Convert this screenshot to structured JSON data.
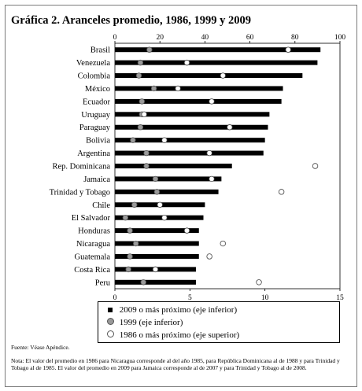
{
  "title": "Gráfica 2. Aranceles promedio, 1986, 1999 y 2009",
  "chart_data": {
    "type": "bar",
    "orientation": "horizontal",
    "categories": [
      "Brasil",
      "Venezuela",
      "Colombia",
      "México",
      "Ecuador",
      "Uruguay",
      "Paraguay",
      "Bolivia",
      "Argentina",
      "Rep. Dominicana",
      "Jamaica",
      "Trinidad y Tobago",
      "Chile",
      "El Salvador",
      "Honduras",
      "Nicaragua",
      "Guatemala",
      "Costa Rica",
      "Peru"
    ],
    "series": [
      {
        "name": "2009 o más próximo (eje inferior)",
        "marker": "bar",
        "axis": "bottom",
        "values": [
          13.7,
          13.5,
          12.5,
          11.2,
          11.1,
          10.3,
          10.2,
          10.0,
          9.9,
          7.8,
          7.1,
          6.9,
          6.0,
          5.9,
          5.6,
          5.6,
          5.6,
          5.4,
          5.4
        ]
      },
      {
        "name": "1999 (eje inferior)",
        "marker": "grey-circle",
        "axis": "bottom",
        "values": [
          2.3,
          1.7,
          1.6,
          2.6,
          1.8,
          1.8,
          1.7,
          1.2,
          2.1,
          2.1,
          2.7,
          2.8,
          1.3,
          0.7,
          1.0,
          1.4,
          1.0,
          0.9,
          1.9
        ]
      },
      {
        "name": "1986 o más próximo (eje superior)",
        "marker": "open-circle",
        "axis": "top",
        "values": [
          77,
          32,
          48,
          28,
          43,
          13,
          51,
          22,
          42,
          89,
          43,
          74,
          20,
          22,
          32,
          48,
          42,
          18,
          64
        ]
      }
    ],
    "bottom_axis": {
      "range": [
        0,
        15
      ],
      "ticks": [
        "0",
        "5",
        "10",
        "15"
      ]
    },
    "top_axis": {
      "range": [
        0,
        100
      ],
      "ticks": [
        "0",
        "20",
        "40",
        "60",
        "80",
        "100"
      ]
    },
    "legend_position": "bottom"
  },
  "legend": {
    "items": [
      {
        "symbol": "square",
        "label": "2009  o más próximo (eje inferior)"
      },
      {
        "symbol": "grey-circle",
        "label": "1999 (eje inferior)"
      },
      {
        "symbol": "open-circle",
        "label": "1986 o más próximo (eje superior)"
      }
    ]
  },
  "source": "Fuente: Véase Apéndice.",
  "note": "Nota: El valor del promedio en 1986 para Nicaragua corresponde al del año 1985, para República Dominicana al de 1988 y para Trinidad y Tobago al de 1985. El valor del promedio en 2009 para Jamaica corresponde al de 2007 y para Trinidad y Tobago al de 2008."
}
